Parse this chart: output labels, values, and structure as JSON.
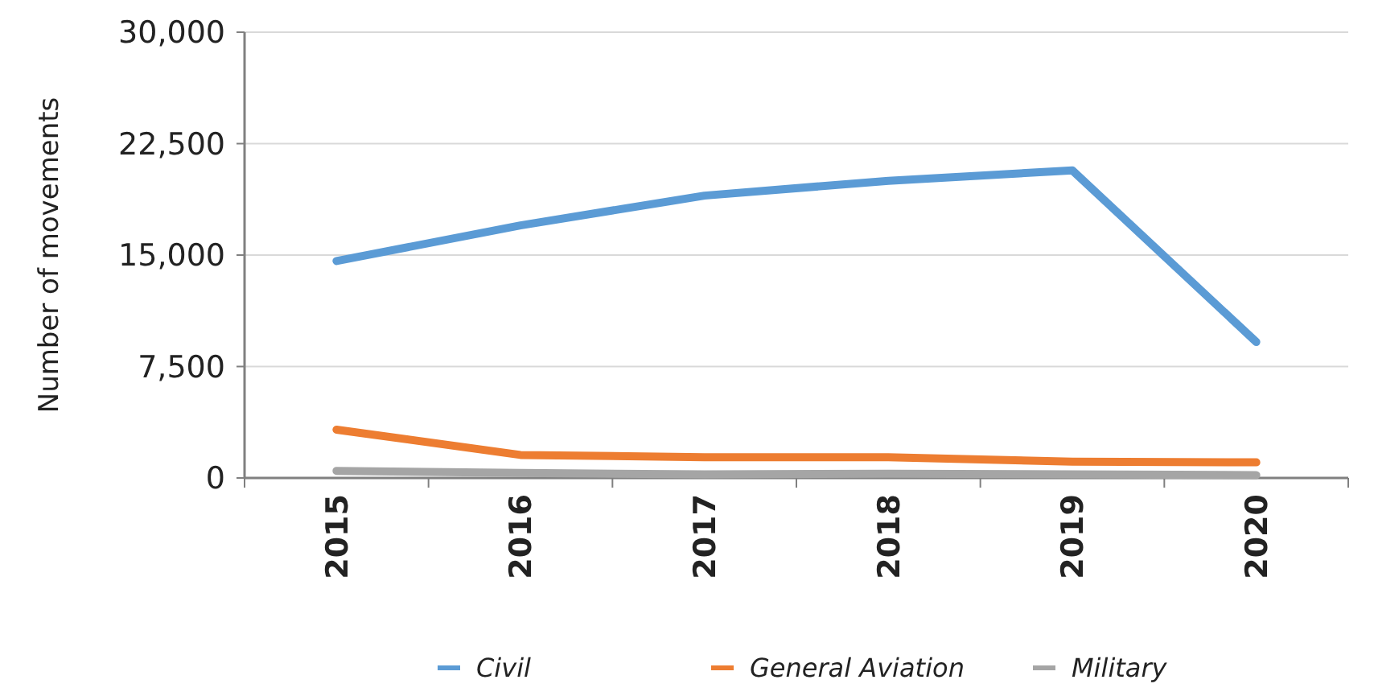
{
  "chart_data": {
    "type": "line",
    "ylabel": "Number of movements",
    "categories": [
      "2015",
      "2016",
      "2017",
      "2018",
      "2019",
      "2020"
    ],
    "series": [
      {
        "name": "Civil",
        "color": "#5b9bd5",
        "values": [
          14600,
          17000,
          19000,
          20000,
          20700,
          9150
        ]
      },
      {
        "name": "General Aviation",
        "color": "#ed7d31",
        "values": [
          3250,
          1550,
          1400,
          1400,
          1100,
          1050
        ]
      },
      {
        "name": "Military",
        "color": "#a5a5a5",
        "values": [
          480,
          340,
          240,
          290,
          240,
          190
        ]
      }
    ],
    "ylim": [
      0,
      30000
    ],
    "yticks": [
      {
        "value": 0,
        "label": "0"
      },
      {
        "value": 7500,
        "label": "7,500"
      },
      {
        "value": 15000,
        "label": "15,000"
      },
      {
        "value": 22500,
        "label": "22,500"
      },
      {
        "value": 30000,
        "label": "30,000"
      }
    ],
    "grid": "y",
    "legend": "bottom",
    "marker": "none",
    "line_style": "solid"
  }
}
